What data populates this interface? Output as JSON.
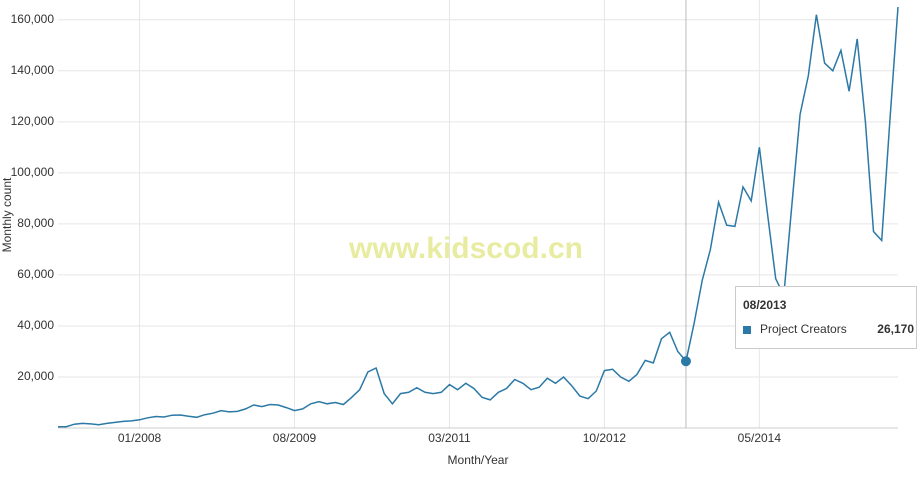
{
  "chart_data": {
    "type": "line",
    "ylabel": "Monthly count",
    "xlabel": "Month/Year",
    "watermark": "www.kidscod.cn",
    "categories": [
      "03/2007",
      "04/2007",
      "05/2007",
      "06/2007",
      "07/2007",
      "08/2007",
      "09/2007",
      "10/2007",
      "11/2007",
      "12/2007",
      "01/2008",
      "02/2008",
      "03/2008",
      "04/2008",
      "05/2008",
      "06/2008",
      "07/2008",
      "08/2008",
      "09/2008",
      "10/2008",
      "11/2008",
      "12/2008",
      "01/2009",
      "02/2009",
      "03/2009",
      "04/2009",
      "05/2009",
      "06/2009",
      "07/2009",
      "08/2009",
      "09/2009",
      "10/2009",
      "11/2009",
      "12/2009",
      "01/2010",
      "02/2010",
      "03/2010",
      "04/2010",
      "05/2010",
      "06/2010",
      "07/2010",
      "08/2010",
      "09/2010",
      "10/2010",
      "11/2010",
      "12/2010",
      "01/2011",
      "02/2011",
      "03/2011",
      "04/2011",
      "05/2011",
      "06/2011",
      "07/2011",
      "08/2011",
      "09/2011",
      "10/2011",
      "11/2011",
      "12/2011",
      "01/2012",
      "02/2012",
      "03/2012",
      "04/2012",
      "05/2012",
      "06/2012",
      "07/2012",
      "08/2012",
      "09/2012",
      "10/2012",
      "11/2012",
      "12/2012",
      "01/2013",
      "02/2013",
      "03/2013",
      "04/2013",
      "05/2013",
      "06/2013",
      "07/2013",
      "08/2013",
      "09/2013",
      "10/2013",
      "11/2013",
      "12/2013",
      "01/2014",
      "02/2014",
      "03/2014",
      "04/2014",
      "05/2014",
      "06/2014",
      "07/2014",
      "08/2014",
      "09/2014",
      "10/2014",
      "11/2014",
      "12/2014",
      "01/2015",
      "02/2015",
      "03/2015",
      "04/2015",
      "05/2015",
      "06/2015",
      "07/2015",
      "08/2015",
      "09/2015",
      "10/2015"
    ],
    "xticks": [
      "01/2008",
      "08/2009",
      "03/2011",
      "10/2012",
      "05/2014"
    ],
    "series": [
      {
        "name": "Project Creators",
        "color": "#2b79a6",
        "values": [
          500,
          500,
          1500,
          1800,
          1600,
          1300,
          1800,
          2200,
          2600,
          2800,
          3200,
          4000,
          4500,
          4300,
          5000,
          5100,
          4600,
          4200,
          5200,
          5800,
          6800,
          6300,
          6500,
          7500,
          9000,
          8400,
          9200,
          9000,
          8000,
          6800,
          7500,
          9500,
          10300,
          9500,
          10000,
          9200,
          12000,
          15000,
          22000,
          23500,
          13500,
          9500,
          13500,
          14000,
          15800,
          14000,
          13500,
          14000,
          17000,
          15000,
          17500,
          15500,
          12000,
          11000,
          14000,
          15500,
          19000,
          17500,
          15000,
          16000,
          19500,
          17500,
          20000,
          16500,
          12500,
          11500,
          14500,
          22500,
          23000,
          20000,
          18300,
          21000,
          26500,
          25500,
          35000,
          37500,
          30000,
          26170,
          41000,
          58000,
          70000,
          88500,
          79500,
          79000,
          94500,
          89000,
          110000,
          84000,
          58500,
          52000,
          88000,
          123000,
          138000,
          162000,
          143000,
          140000,
          148000,
          132000,
          152500,
          120000,
          77000,
          73500,
          120000,
          165000
        ]
      }
    ],
    "ylim": [
      0,
      165000
    ],
    "yticks": [
      {
        "value": 20000,
        "label": "20,000"
      },
      {
        "value": 40000,
        "label": "40,000"
      },
      {
        "value": 60000,
        "label": "60,000"
      },
      {
        "value": 80000,
        "label": "80,000"
      },
      {
        "value": 100000,
        "label": "100,000"
      },
      {
        "value": 120000,
        "label": "120,000"
      },
      {
        "value": 140000,
        "label": "140,000"
      },
      {
        "value": 160000,
        "label": "160,000"
      }
    ],
    "grid": true,
    "tooltip": {
      "x": "08/2013",
      "value": 26170,
      "value_label": "26,170"
    }
  }
}
